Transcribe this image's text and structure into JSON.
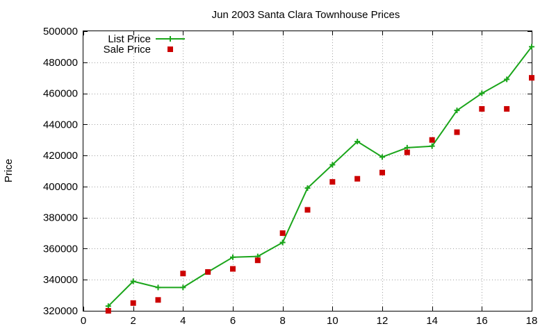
{
  "chart_data": {
    "type": "line",
    "title": "Jun 2003 Santa Clara Townhouse Prices",
    "xlabel": "",
    "ylabel": "Price",
    "xlim": [
      0,
      18
    ],
    "ylim": [
      320000,
      500000
    ],
    "xticks": [
      0,
      2,
      4,
      6,
      8,
      10,
      12,
      14,
      16,
      18
    ],
    "yticks": [
      320000,
      340000,
      360000,
      380000,
      400000,
      420000,
      440000,
      460000,
      480000,
      500000
    ],
    "xtick_labels": [
      "0",
      "2",
      "4",
      "6",
      "8",
      "10",
      "12",
      "14",
      "16",
      "18"
    ],
    "ytick_labels": [
      "320000",
      "340000",
      "360000",
      "380000",
      "400000",
      "420000",
      "440000",
      "460000",
      "480000",
      "500000"
    ],
    "grid": true,
    "legend_position": "top-left",
    "series": [
      {
        "name": "List Price",
        "style": "line-with-plus-markers",
        "color": "#1aa51a",
        "x": [
          1,
          2,
          3,
          4,
          5,
          6,
          7,
          8,
          9,
          10,
          11,
          12,
          13,
          14,
          15,
          16,
          17,
          18
        ],
        "values": [
          323000,
          339000,
          335000,
          335000,
          345000,
          354500,
          355000,
          364000,
          399000,
          414000,
          429000,
          419000,
          425000,
          426000,
          449000,
          460000,
          469000,
          490000
        ]
      },
      {
        "name": "Sale Price",
        "style": "square-points",
        "color": "#cc0000",
        "x": [
          1,
          2,
          3,
          4,
          5,
          6,
          7,
          8,
          9,
          10,
          11,
          12,
          13,
          14,
          15,
          16,
          17,
          18
        ],
        "values": [
          320000,
          325000,
          327000,
          344000,
          345000,
          347000,
          352500,
          370000,
          385000,
          403000,
          405000,
          409000,
          422000,
          430000,
          435000,
          450000,
          450000,
          470000
        ]
      }
    ]
  }
}
